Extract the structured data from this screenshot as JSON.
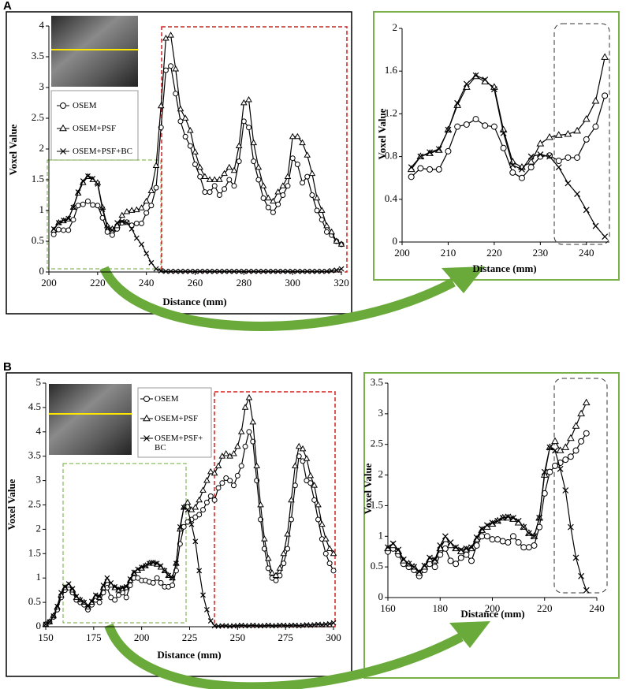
{
  "panel_labels": [
    "A",
    "B"
  ],
  "chart_data": [
    {
      "type": "line",
      "x_label": "Distance (mm)",
      "y_label": "Voxel Value",
      "xlim": [
        200,
        320
      ],
      "ylim": [
        0,
        4
      ],
      "xticks": [
        200,
        220,
        240,
        260,
        280,
        300,
        320
      ],
      "yticks": [
        0,
        0.5,
        1,
        1.5,
        2,
        2.5,
        3,
        3.5,
        4
      ],
      "legend": true,
      "x": [
        202,
        204,
        206,
        208,
        210,
        212,
        214,
        216,
        218,
        220,
        222,
        224,
        226,
        228,
        230,
        232,
        234,
        236,
        238,
        240,
        242,
        244,
        246,
        248,
        250,
        252,
        254,
        256,
        258,
        260,
        262,
        264,
        266,
        268,
        270,
        272,
        274,
        276,
        278,
        280,
        282,
        284,
        286,
        288,
        290,
        292,
        294,
        296,
        298,
        300,
        302,
        304,
        306,
        308,
        310,
        312,
        314,
        316,
        318,
        320
      ],
      "series": [
        {
          "name": "OSEM",
          "color": "#000000",
          "marker": "circle",
          "values": [
            0.61,
            0.69,
            0.68,
            0.68,
            0.85,
            1.08,
            1.1,
            1.15,
            1.09,
            1.08,
            0.88,
            0.65,
            0.6,
            0.7,
            0.8,
            0.81,
            0.76,
            0.79,
            0.79,
            0.96,
            1.08,
            1.37,
            2.35,
            3.28,
            3.35,
            2.9,
            2.45,
            2.2,
            2.05,
            1.75,
            1.55,
            1.3,
            1.3,
            1.4,
            1.25,
            1.35,
            1.5,
            1.4,
            1.8,
            2.45,
            2.35,
            1.8,
            1.5,
            1.2,
            1.05,
            0.97,
            1.1,
            1.25,
            1.4,
            1.85,
            1.75,
            1.45,
            1.55,
            1.25,
            1.0,
            0.85,
            0.65,
            0.6,
            0.5,
            0.45
          ]
        },
        {
          "name": "OSEM+PSF",
          "color": "#000000",
          "marker": "triangle",
          "values": [
            0.68,
            0.8,
            0.83,
            0.86,
            1.05,
            1.28,
            1.45,
            1.55,
            1.5,
            1.45,
            1.05,
            0.75,
            0.7,
            0.75,
            0.92,
            0.98,
            1.0,
            1.01,
            1.04,
            1.15,
            1.32,
            1.73,
            2.7,
            3.8,
            3.85,
            3.3,
            2.65,
            2.5,
            2.3,
            1.95,
            1.7,
            1.55,
            1.5,
            1.5,
            1.5,
            1.6,
            1.7,
            1.65,
            2.05,
            2.75,
            2.8,
            2.1,
            1.7,
            1.4,
            1.2,
            1.15,
            1.3,
            1.4,
            1.55,
            2.2,
            2.2,
            2.1,
            1.9,
            1.6,
            1.2,
            1.0,
            0.75,
            0.65,
            0.5,
            0.45
          ]
        },
        {
          "name": "OSEM+PSF+BC",
          "color": "#000000",
          "marker": "x",
          "values": [
            0.7,
            0.8,
            0.84,
            0.87,
            1.05,
            1.3,
            1.48,
            1.56,
            1.52,
            1.43,
            1.02,
            0.72,
            0.68,
            0.8,
            0.82,
            0.8,
            0.7,
            0.55,
            0.45,
            0.3,
            0.15,
            0.05,
            0.02,
            0.01,
            0.01,
            0.01,
            0.01,
            0.01,
            0.01,
            0.01,
            0.01,
            0.01,
            0.01,
            0.01,
            0.01,
            0.01,
            0.01,
            0.01,
            0.01,
            0.01,
            0.01,
            0.01,
            0.01,
            0.01,
            0.01,
            0.01,
            0.01,
            0.01,
            0.01,
            0.01,
            0.01,
            0.01,
            0.01,
            0.01,
            0.01,
            0.01,
            0.01,
            0.02,
            0.03,
            0.05
          ]
        }
      ]
    },
    {
      "type": "line",
      "x_label": "Distance (mm)",
      "y_label": "Voxel Value",
      "xlim": [
        200,
        245
      ],
      "ylim": [
        0,
        2
      ],
      "xticks": [
        200,
        210,
        220,
        230,
        240
      ],
      "yticks": [
        0,
        0.4,
        0.8,
        1.2,
        1.6,
        2
      ],
      "legend": false,
      "x": [
        202,
        204,
        206,
        208,
        210,
        212,
        214,
        216,
        218,
        220,
        222,
        224,
        226,
        228,
        230,
        232,
        234,
        236,
        238,
        240,
        242,
        244
      ],
      "series": [
        {
          "color": "#000000",
          "marker": "circle",
          "values": [
            0.61,
            0.69,
            0.68,
            0.68,
            0.85,
            1.08,
            1.1,
            1.15,
            1.09,
            1.08,
            0.88,
            0.65,
            0.6,
            0.7,
            0.8,
            0.81,
            0.76,
            0.79,
            0.79,
            0.96,
            1.08,
            1.37
          ]
        },
        {
          "color": "#000000",
          "marker": "triangle",
          "values": [
            0.68,
            0.8,
            0.83,
            0.86,
            1.05,
            1.28,
            1.45,
            1.55,
            1.5,
            1.45,
            1.05,
            0.75,
            0.7,
            0.75,
            0.92,
            0.98,
            1.0,
            1.01,
            1.04,
            1.15,
            1.32,
            1.73
          ]
        },
        {
          "color": "#000000",
          "marker": "x",
          "values": [
            0.7,
            0.8,
            0.84,
            0.87,
            1.05,
            1.3,
            1.48,
            1.56,
            1.52,
            1.43,
            1.02,
            0.72,
            0.68,
            0.8,
            0.82,
            0.8,
            0.7,
            0.55,
            0.45,
            0.3,
            0.15,
            0.05
          ]
        }
      ]
    },
    {
      "type": "line",
      "x_label": "Distance (mm)",
      "y_label": "Voxel Value",
      "xlim": [
        150,
        300
      ],
      "ylim": [
        0,
        5
      ],
      "xticks": [
        150,
        175,
        200,
        225,
        250,
        275,
        300
      ],
      "yticks": [
        0,
        0.5,
        1,
        1.5,
        2,
        2.5,
        3,
        3.5,
        4,
        4.5,
        5
      ],
      "legend": true,
      "x": [
        150,
        152,
        154,
        156,
        158,
        160,
        162,
        164,
        166,
        168,
        170,
        172,
        174,
        176,
        178,
        180,
        182,
        184,
        186,
        188,
        190,
        192,
        194,
        196,
        198,
        200,
        202,
        204,
        206,
        208,
        210,
        212,
        214,
        216,
        218,
        220,
        222,
        224,
        226,
        228,
        230,
        232,
        234,
        236,
        238,
        240,
        242,
        244,
        246,
        248,
        250,
        252,
        254,
        256,
        258,
        260,
        262,
        264,
        266,
        268,
        270,
        272,
        274,
        276,
        278,
        280,
        282,
        284,
        286,
        288,
        290,
        292,
        294,
        296,
        298,
        300
      ],
      "series": [
        {
          "name": "OSEM",
          "color": "#000000",
          "marker": "circle",
          "values": [
            0.05,
            0.1,
            0.2,
            0.35,
            0.6,
            0.75,
            0.8,
            0.7,
            0.55,
            0.5,
            0.45,
            0.35,
            0.45,
            0.55,
            0.5,
            0.7,
            0.8,
            0.6,
            0.55,
            0.65,
            0.7,
            0.6,
            0.85,
            1.0,
            1.0,
            0.95,
            0.95,
            0.92,
            0.9,
            1.0,
            0.9,
            0.82,
            0.82,
            0.85,
            1.15,
            1.7,
            2.05,
            2.15,
            2.2,
            2.25,
            2.3,
            2.4,
            2.55,
            2.68,
            2.6,
            2.85,
            2.95,
            3.05,
            3.0,
            2.9,
            3.1,
            3.3,
            3.7,
            4.0,
            3.8,
            3.0,
            2.2,
            1.6,
            1.2,
            1.0,
            0.95,
            1.05,
            1.3,
            1.6,
            2.2,
            2.9,
            3.5,
            3.4,
            3.0,
            2.95,
            2.6,
            2.2,
            1.8,
            1.5,
            1.3,
            1.15
          ]
        },
        {
          "name": "OSEM+PSF",
          "color": "#000000",
          "marker": "triangle",
          "values": [
            0.05,
            0.1,
            0.22,
            0.4,
            0.65,
            0.8,
            0.85,
            0.75,
            0.6,
            0.55,
            0.5,
            0.4,
            0.5,
            0.62,
            0.6,
            0.8,
            0.95,
            0.85,
            0.8,
            0.75,
            0.78,
            0.8,
            0.95,
            1.1,
            1.15,
            1.2,
            1.25,
            1.3,
            1.3,
            1.28,
            1.22,
            1.15,
            1.05,
            1.0,
            1.3,
            2.0,
            2.45,
            2.55,
            2.4,
            2.45,
            2.6,
            2.8,
            3.0,
            3.18,
            3.15,
            3.3,
            3.5,
            3.55,
            3.5,
            3.55,
            3.7,
            4.0,
            4.5,
            4.7,
            4.2,
            3.3,
            2.5,
            1.8,
            1.4,
            1.1,
            1.05,
            1.2,
            1.5,
            1.9,
            2.6,
            3.3,
            3.7,
            3.65,
            3.45,
            3.1,
            2.9,
            2.5,
            2.1,
            1.8,
            1.6,
            1.5
          ]
        },
        {
          "name": "OSEM+PSF+ BC",
          "color": "#000000",
          "marker": "x",
          "values": [
            0.05,
            0.1,
            0.22,
            0.42,
            0.7,
            0.82,
            0.88,
            0.78,
            0.62,
            0.55,
            0.5,
            0.42,
            0.52,
            0.65,
            0.62,
            0.85,
            1.0,
            0.9,
            0.82,
            0.78,
            0.8,
            0.82,
            0.98,
            1.12,
            1.18,
            1.22,
            1.25,
            1.3,
            1.32,
            1.3,
            1.25,
            1.15,
            1.05,
            1.0,
            1.3,
            2.05,
            2.45,
            2.4,
            2.1,
            1.75,
            1.15,
            0.65,
            0.35,
            0.12,
            0.02,
            0.01,
            0.02,
            0.02,
            0.01,
            0.02,
            0.02,
            0.03,
            0.02,
            0.02,
            0.03,
            0.02,
            0.02,
            0.02,
            0.03,
            0.02,
            0.02,
            0.03,
            0.03,
            0.02,
            0.03,
            0.03,
            0.02,
            0.03,
            0.04,
            0.03,
            0.04,
            0.05,
            0.04,
            0.05,
            0.06,
            0.08
          ]
        }
      ]
    },
    {
      "type": "line",
      "x_label": "Distance (mm)",
      "y_label": "Voxel Value",
      "xlim": [
        160,
        240
      ],
      "ylim": [
        0,
        3.5
      ],
      "xticks": [
        160,
        180,
        200,
        220,
        240
      ],
      "yticks": [
        0,
        0.5,
        1,
        1.5,
        2,
        2.5,
        3,
        3.5
      ],
      "legend": false,
      "x": [
        160,
        162,
        164,
        166,
        168,
        170,
        172,
        174,
        176,
        178,
        180,
        182,
        184,
        186,
        188,
        190,
        192,
        194,
        196,
        198,
        200,
        202,
        204,
        206,
        208,
        210,
        212,
        214,
        216,
        218,
        220,
        222,
        224,
        226,
        228,
        230,
        232,
        234,
        236
      ],
      "series": [
        {
          "color": "#000000",
          "marker": "circle",
          "values": [
            0.75,
            0.8,
            0.7,
            0.55,
            0.5,
            0.45,
            0.35,
            0.45,
            0.55,
            0.5,
            0.7,
            0.8,
            0.6,
            0.55,
            0.65,
            0.7,
            0.6,
            0.85,
            1.0,
            1.0,
            0.95,
            0.95,
            0.92,
            0.9,
            1.0,
            0.9,
            0.82,
            0.82,
            0.85,
            1.15,
            1.7,
            2.05,
            2.15,
            2.2,
            2.25,
            2.3,
            2.4,
            2.55,
            2.68
          ]
        },
        {
          "color": "#000000",
          "marker": "triangle",
          "values": [
            0.8,
            0.85,
            0.75,
            0.6,
            0.55,
            0.5,
            0.4,
            0.5,
            0.62,
            0.6,
            0.8,
            0.95,
            0.85,
            0.8,
            0.75,
            0.78,
            0.8,
            0.95,
            1.1,
            1.15,
            1.2,
            1.25,
            1.3,
            1.3,
            1.28,
            1.22,
            1.15,
            1.05,
            1.0,
            1.3,
            2.0,
            2.45,
            2.55,
            2.4,
            2.45,
            2.6,
            2.8,
            3.0,
            3.18
          ]
        },
        {
          "color": "#000000",
          "marker": "x",
          "values": [
            0.82,
            0.88,
            0.78,
            0.62,
            0.55,
            0.5,
            0.42,
            0.52,
            0.65,
            0.62,
            0.85,
            1.0,
            0.9,
            0.82,
            0.78,
            0.8,
            0.82,
            0.98,
            1.12,
            1.18,
            1.22,
            1.25,
            1.3,
            1.32,
            1.3,
            1.25,
            1.15,
            1.05,
            1.0,
            1.3,
            2.05,
            2.45,
            2.4,
            2.1,
            1.75,
            1.15,
            0.65,
            0.35,
            0.12
          ]
        }
      ]
    }
  ]
}
